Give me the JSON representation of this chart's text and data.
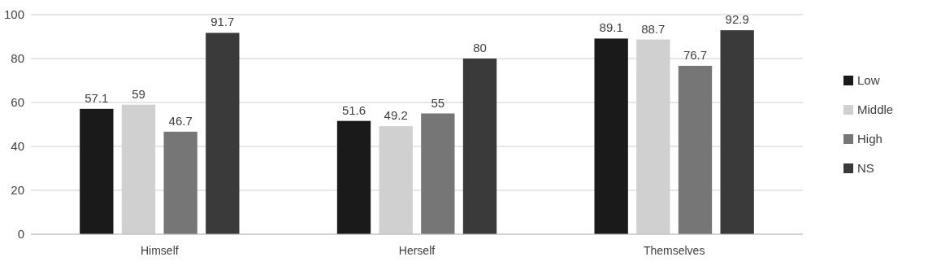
{
  "chart_data": {
    "type": "bar",
    "categories": [
      "Himself",
      "Herself",
      "Themselves"
    ],
    "series": [
      {
        "name": "Low",
        "color": "#1a1a1a",
        "values": [
          57.1,
          51.6,
          89.1
        ]
      },
      {
        "name": "Middle",
        "color": "#d0d0d0",
        "values": [
          59,
          49.2,
          88.7
        ]
      },
      {
        "name": "High",
        "color": "#767676",
        "values": [
          46.7,
          55,
          76.7
        ]
      },
      {
        "name": "NS",
        "color": "#3a3a3a",
        "values": [
          91.7,
          80,
          92.9
        ]
      }
    ],
    "ylim": [
      0,
      100
    ],
    "yticks": [
      0,
      20,
      40,
      60,
      80,
      100
    ],
    "grid": "y",
    "legend": "right",
    "data_labels": true
  }
}
